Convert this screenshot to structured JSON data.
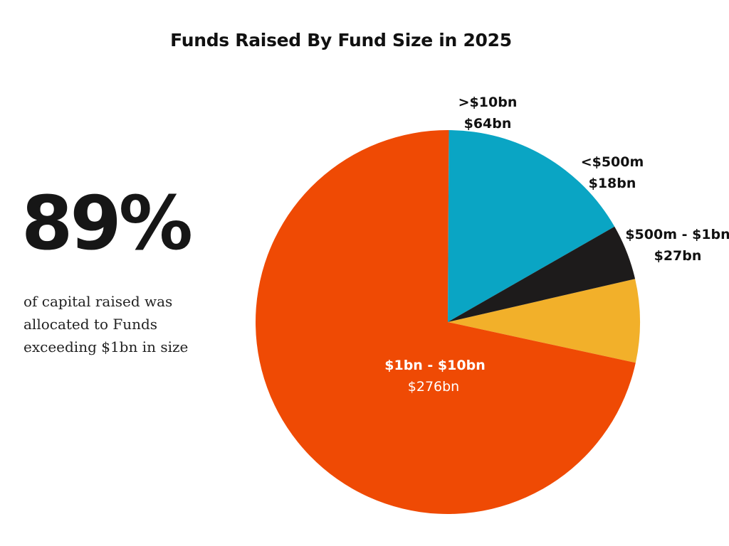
{
  "chart_data": {
    "type": "pie",
    "title": "Funds Raised By Fund Size in 2025",
    "slices": [
      {
        "label": "$500m - $1bn",
        "value_label": "$27bn",
        "value": 27,
        "color": "#F2B02A"
      },
      {
        "label": "$1bn - $10bn",
        "value_label": "$276bn",
        "value": 276,
        "color": "#EF4A04"
      },
      {
        "label": ">$10bn",
        "value_label": "$64bn",
        "value": 64,
        "color": "#0AA5C4"
      },
      {
        "label": "<$500m",
        "value_label": "$18bn",
        "value": 18,
        "color": "#1D1B1B"
      }
    ]
  },
  "highlight": {
    "stat": "89%",
    "caption_lines": [
      "of capital raised was",
      "allocated to Funds",
      "exceeding $1bn in size"
    ]
  }
}
